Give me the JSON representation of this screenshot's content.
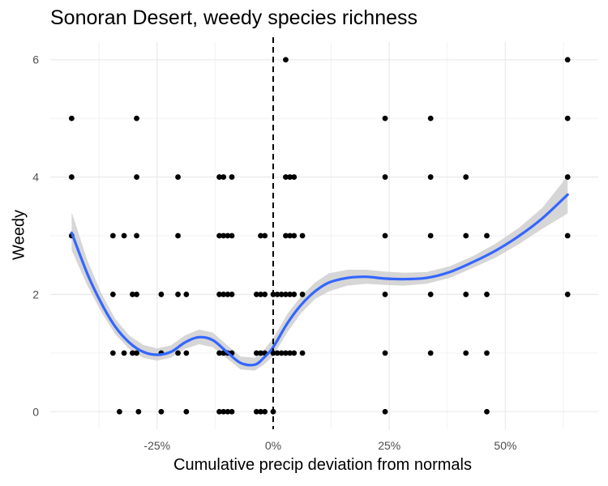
{
  "chart_data": {
    "type": "scatter",
    "title": "Sonoran Desert, weedy species richness",
    "xlabel": "Cumulative precip deviation from normals",
    "ylabel": "Weedy",
    "x_tick_values": [
      -0.25,
      0,
      0.25,
      0.5
    ],
    "x_tick_labels": [
      "-25%",
      "0%",
      "25%",
      "50%"
    ],
    "y_tick_values": [
      0,
      2,
      4,
      6
    ],
    "y_tick_labels": [
      "0",
      "2",
      "4",
      "6"
    ],
    "xlim": [
      -0.48,
      0.7
    ],
    "ylim": [
      -0.3,
      6.3
    ],
    "grid": true,
    "reference_line": {
      "x": 0,
      "style": "dashed",
      "color": "#000000"
    },
    "point_color": "#000000",
    "smooth_color": "#3366FF",
    "ribbon_color": "#CCCCCC",
    "points": [
      {
        "x": -0.434,
        "y": 5
      },
      {
        "x": -0.434,
        "y": 4
      },
      {
        "x": -0.434,
        "y": 3
      },
      {
        "x": -0.345,
        "y": 3
      },
      {
        "x": -0.345,
        "y": 2
      },
      {
        "x": -0.345,
        "y": 1
      },
      {
        "x": -0.331,
        "y": 0
      },
      {
        "x": -0.321,
        "y": 3
      },
      {
        "x": -0.321,
        "y": 1
      },
      {
        "x": -0.303,
        "y": 2
      },
      {
        "x": -0.303,
        "y": 1
      },
      {
        "x": -0.294,
        "y": 5
      },
      {
        "x": -0.294,
        "y": 4
      },
      {
        "x": -0.294,
        "y": 3
      },
      {
        "x": -0.294,
        "y": 2
      },
      {
        "x": -0.294,
        "y": 1
      },
      {
        "x": -0.29,
        "y": 0
      },
      {
        "x": -0.241,
        "y": 2
      },
      {
        "x": -0.241,
        "y": 1
      },
      {
        "x": -0.241,
        "y": 0
      },
      {
        "x": -0.205,
        "y": 4
      },
      {
        "x": -0.205,
        "y": 3
      },
      {
        "x": -0.205,
        "y": 2
      },
      {
        "x": -0.205,
        "y": 1
      },
      {
        "x": -0.187,
        "y": 2
      },
      {
        "x": -0.187,
        "y": 1
      },
      {
        "x": -0.187,
        "y": 0
      },
      {
        "x": -0.116,
        "y": 4
      },
      {
        "x": -0.116,
        "y": 3
      },
      {
        "x": -0.116,
        "y": 2
      },
      {
        "x": -0.116,
        "y": 1
      },
      {
        "x": -0.116,
        "y": 0
      },
      {
        "x": -0.107,
        "y": 4
      },
      {
        "x": -0.107,
        "y": 3
      },
      {
        "x": -0.107,
        "y": 2
      },
      {
        "x": -0.107,
        "y": 1
      },
      {
        "x": -0.107,
        "y": 0
      },
      {
        "x": -0.098,
        "y": 3
      },
      {
        "x": -0.098,
        "y": 2
      },
      {
        "x": -0.098,
        "y": 1
      },
      {
        "x": -0.098,
        "y": 0
      },
      {
        "x": -0.089,
        "y": 4
      },
      {
        "x": -0.089,
        "y": 3
      },
      {
        "x": -0.089,
        "y": 2
      },
      {
        "x": -0.089,
        "y": 1
      },
      {
        "x": -0.089,
        "y": 0
      },
      {
        "x": -0.036,
        "y": 2
      },
      {
        "x": -0.036,
        "y": 1
      },
      {
        "x": -0.036,
        "y": 0
      },
      {
        "x": -0.027,
        "y": 3
      },
      {
        "x": -0.027,
        "y": 2
      },
      {
        "x": -0.027,
        "y": 1
      },
      {
        "x": -0.027,
        "y": 0
      },
      {
        "x": -0.018,
        "y": 3
      },
      {
        "x": -0.018,
        "y": 2
      },
      {
        "x": -0.018,
        "y": 1
      },
      {
        "x": -0.018,
        "y": 0
      },
      {
        "x": 0.0,
        "y": 2
      },
      {
        "x": 0.0,
        "y": 1
      },
      {
        "x": 0.0,
        "y": 0
      },
      {
        "x": 0.009,
        "y": 2
      },
      {
        "x": 0.009,
        "y": 1
      },
      {
        "x": 0.018,
        "y": 2
      },
      {
        "x": 0.018,
        "y": 1
      },
      {
        "x": 0.027,
        "y": 6
      },
      {
        "x": 0.027,
        "y": 4
      },
      {
        "x": 0.027,
        "y": 3
      },
      {
        "x": 0.027,
        "y": 2
      },
      {
        "x": 0.027,
        "y": 1
      },
      {
        "x": 0.036,
        "y": 4
      },
      {
        "x": 0.036,
        "y": 3
      },
      {
        "x": 0.036,
        "y": 2
      },
      {
        "x": 0.036,
        "y": 1
      },
      {
        "x": 0.045,
        "y": 4
      },
      {
        "x": 0.045,
        "y": 3
      },
      {
        "x": 0.045,
        "y": 2
      },
      {
        "x": 0.045,
        "y": 1
      },
      {
        "x": 0.063,
        "y": 3
      },
      {
        "x": 0.063,
        "y": 2
      },
      {
        "x": 0.063,
        "y": 1
      },
      {
        "x": 0.241,
        "y": 5
      },
      {
        "x": 0.241,
        "y": 4
      },
      {
        "x": 0.241,
        "y": 3
      },
      {
        "x": 0.241,
        "y": 2
      },
      {
        "x": 0.241,
        "y": 1
      },
      {
        "x": 0.241,
        "y": 0
      },
      {
        "x": 0.339,
        "y": 5
      },
      {
        "x": 0.339,
        "y": 4
      },
      {
        "x": 0.339,
        "y": 3
      },
      {
        "x": 0.339,
        "y": 2
      },
      {
        "x": 0.339,
        "y": 1
      },
      {
        "x": 0.415,
        "y": 4
      },
      {
        "x": 0.415,
        "y": 3
      },
      {
        "x": 0.415,
        "y": 2
      },
      {
        "x": 0.415,
        "y": 1
      },
      {
        "x": 0.46,
        "y": 3
      },
      {
        "x": 0.46,
        "y": 2
      },
      {
        "x": 0.46,
        "y": 1
      },
      {
        "x": 0.46,
        "y": 0
      },
      {
        "x": 0.634,
        "y": 6
      },
      {
        "x": 0.634,
        "y": 5
      },
      {
        "x": 0.634,
        "y": 4
      },
      {
        "x": 0.634,
        "y": 3
      },
      {
        "x": 0.634,
        "y": 2
      }
    ],
    "smooth": {
      "x": [
        -0.434,
        -0.4,
        -0.37,
        -0.34,
        -0.31,
        -0.28,
        -0.25,
        -0.22,
        -0.19,
        -0.16,
        -0.13,
        -0.1,
        -0.07,
        -0.04,
        -0.02,
        0.0,
        0.03,
        0.06,
        0.09,
        0.12,
        0.16,
        0.2,
        0.24,
        0.28,
        0.33,
        0.38,
        0.43,
        0.48,
        0.53,
        0.58,
        0.634
      ],
      "y": [
        3.05,
        2.35,
        1.85,
        1.45,
        1.18,
        1.02,
        0.97,
        1.02,
        1.18,
        1.27,
        1.22,
        1.02,
        0.83,
        0.8,
        0.92,
        1.1,
        1.5,
        1.82,
        2.05,
        2.2,
        2.28,
        2.3,
        2.27,
        2.26,
        2.28,
        2.38,
        2.55,
        2.75,
        3.0,
        3.3,
        3.7
      ],
      "lower": [
        2.75,
        2.15,
        1.7,
        1.32,
        1.07,
        0.92,
        0.87,
        0.92,
        1.07,
        1.15,
        1.1,
        0.91,
        0.72,
        0.7,
        0.8,
        0.95,
        1.35,
        1.68,
        1.92,
        2.05,
        2.15,
        2.18,
        2.16,
        2.15,
        2.18,
        2.28,
        2.45,
        2.63,
        2.86,
        3.12,
        3.38
      ],
      "upper": [
        3.4,
        2.58,
        2.02,
        1.58,
        1.3,
        1.14,
        1.08,
        1.13,
        1.3,
        1.4,
        1.35,
        1.14,
        0.94,
        0.92,
        1.05,
        1.25,
        1.66,
        1.97,
        2.2,
        2.36,
        2.42,
        2.42,
        2.39,
        2.37,
        2.38,
        2.48,
        2.65,
        2.87,
        3.14,
        3.48,
        4.02
      ]
    }
  }
}
